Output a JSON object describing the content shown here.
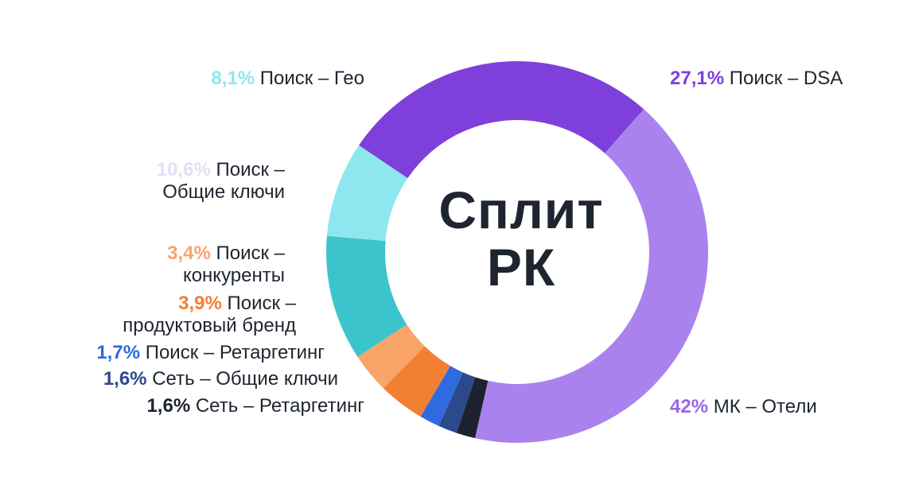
{
  "center_title": {
    "line1": "Сплит",
    "line2": "РК"
  },
  "chart_data": {
    "type": "pie",
    "donut": true,
    "title": "Сплит РК",
    "slices": [
      {
        "label_line1": "Поиск – DSA",
        "label_line2": "",
        "pct": "27,1%",
        "value": 27.1,
        "color": "#7f3fdb",
        "label_color": "#7f3fdb"
      },
      {
        "label_line1": "МК – Отели",
        "label_line2": "",
        "pct": "42%",
        "value": 42.0,
        "color": "#aa82ed",
        "label_color": "#9a66e4"
      },
      {
        "label_line1": "Сеть – Ретаргетинг",
        "label_line2": "",
        "pct": "1,6%",
        "value": 1.6,
        "color": "#1c2230",
        "label_color": "#1c2230"
      },
      {
        "label_line1": "Сеть – Общие ключи",
        "label_line2": "",
        "pct": "1,6%",
        "value": 1.6,
        "color": "#2b4a8c",
        "label_color": "#2b4a8c"
      },
      {
        "label_line1": "Поиск – Ретаргетинг",
        "label_line2": "",
        "pct": "1,7%",
        "value": 1.7,
        "color": "#2f6bde",
        "label_color": "#2f6bde"
      },
      {
        "label_line1": "Поиск –",
        "label_line2": "продуктовый бренд",
        "pct": "3,9%",
        "value": 3.9,
        "color": "#f27f33",
        "label_color": "#f27f33"
      },
      {
        "label_line1": "Поиск –",
        "label_line2": "конкуренты",
        "pct": "3,4%",
        "value": 3.4,
        "color": "#f9a469",
        "label_color": "#f9a469"
      },
      {
        "label_line1": "Поиск –",
        "label_line2": "Общие ключи",
        "pct": "10,6%",
        "value": 10.6,
        "color": "#3cc4cc",
        "label_color": "#e3e0f4"
      },
      {
        "label_line1": "Поиск – Гео",
        "label_line2": "",
        "pct": "8,1%",
        "value": 8.1,
        "color": "#8ee7ee",
        "label_color": "#8ee7ee"
      }
    ]
  }
}
